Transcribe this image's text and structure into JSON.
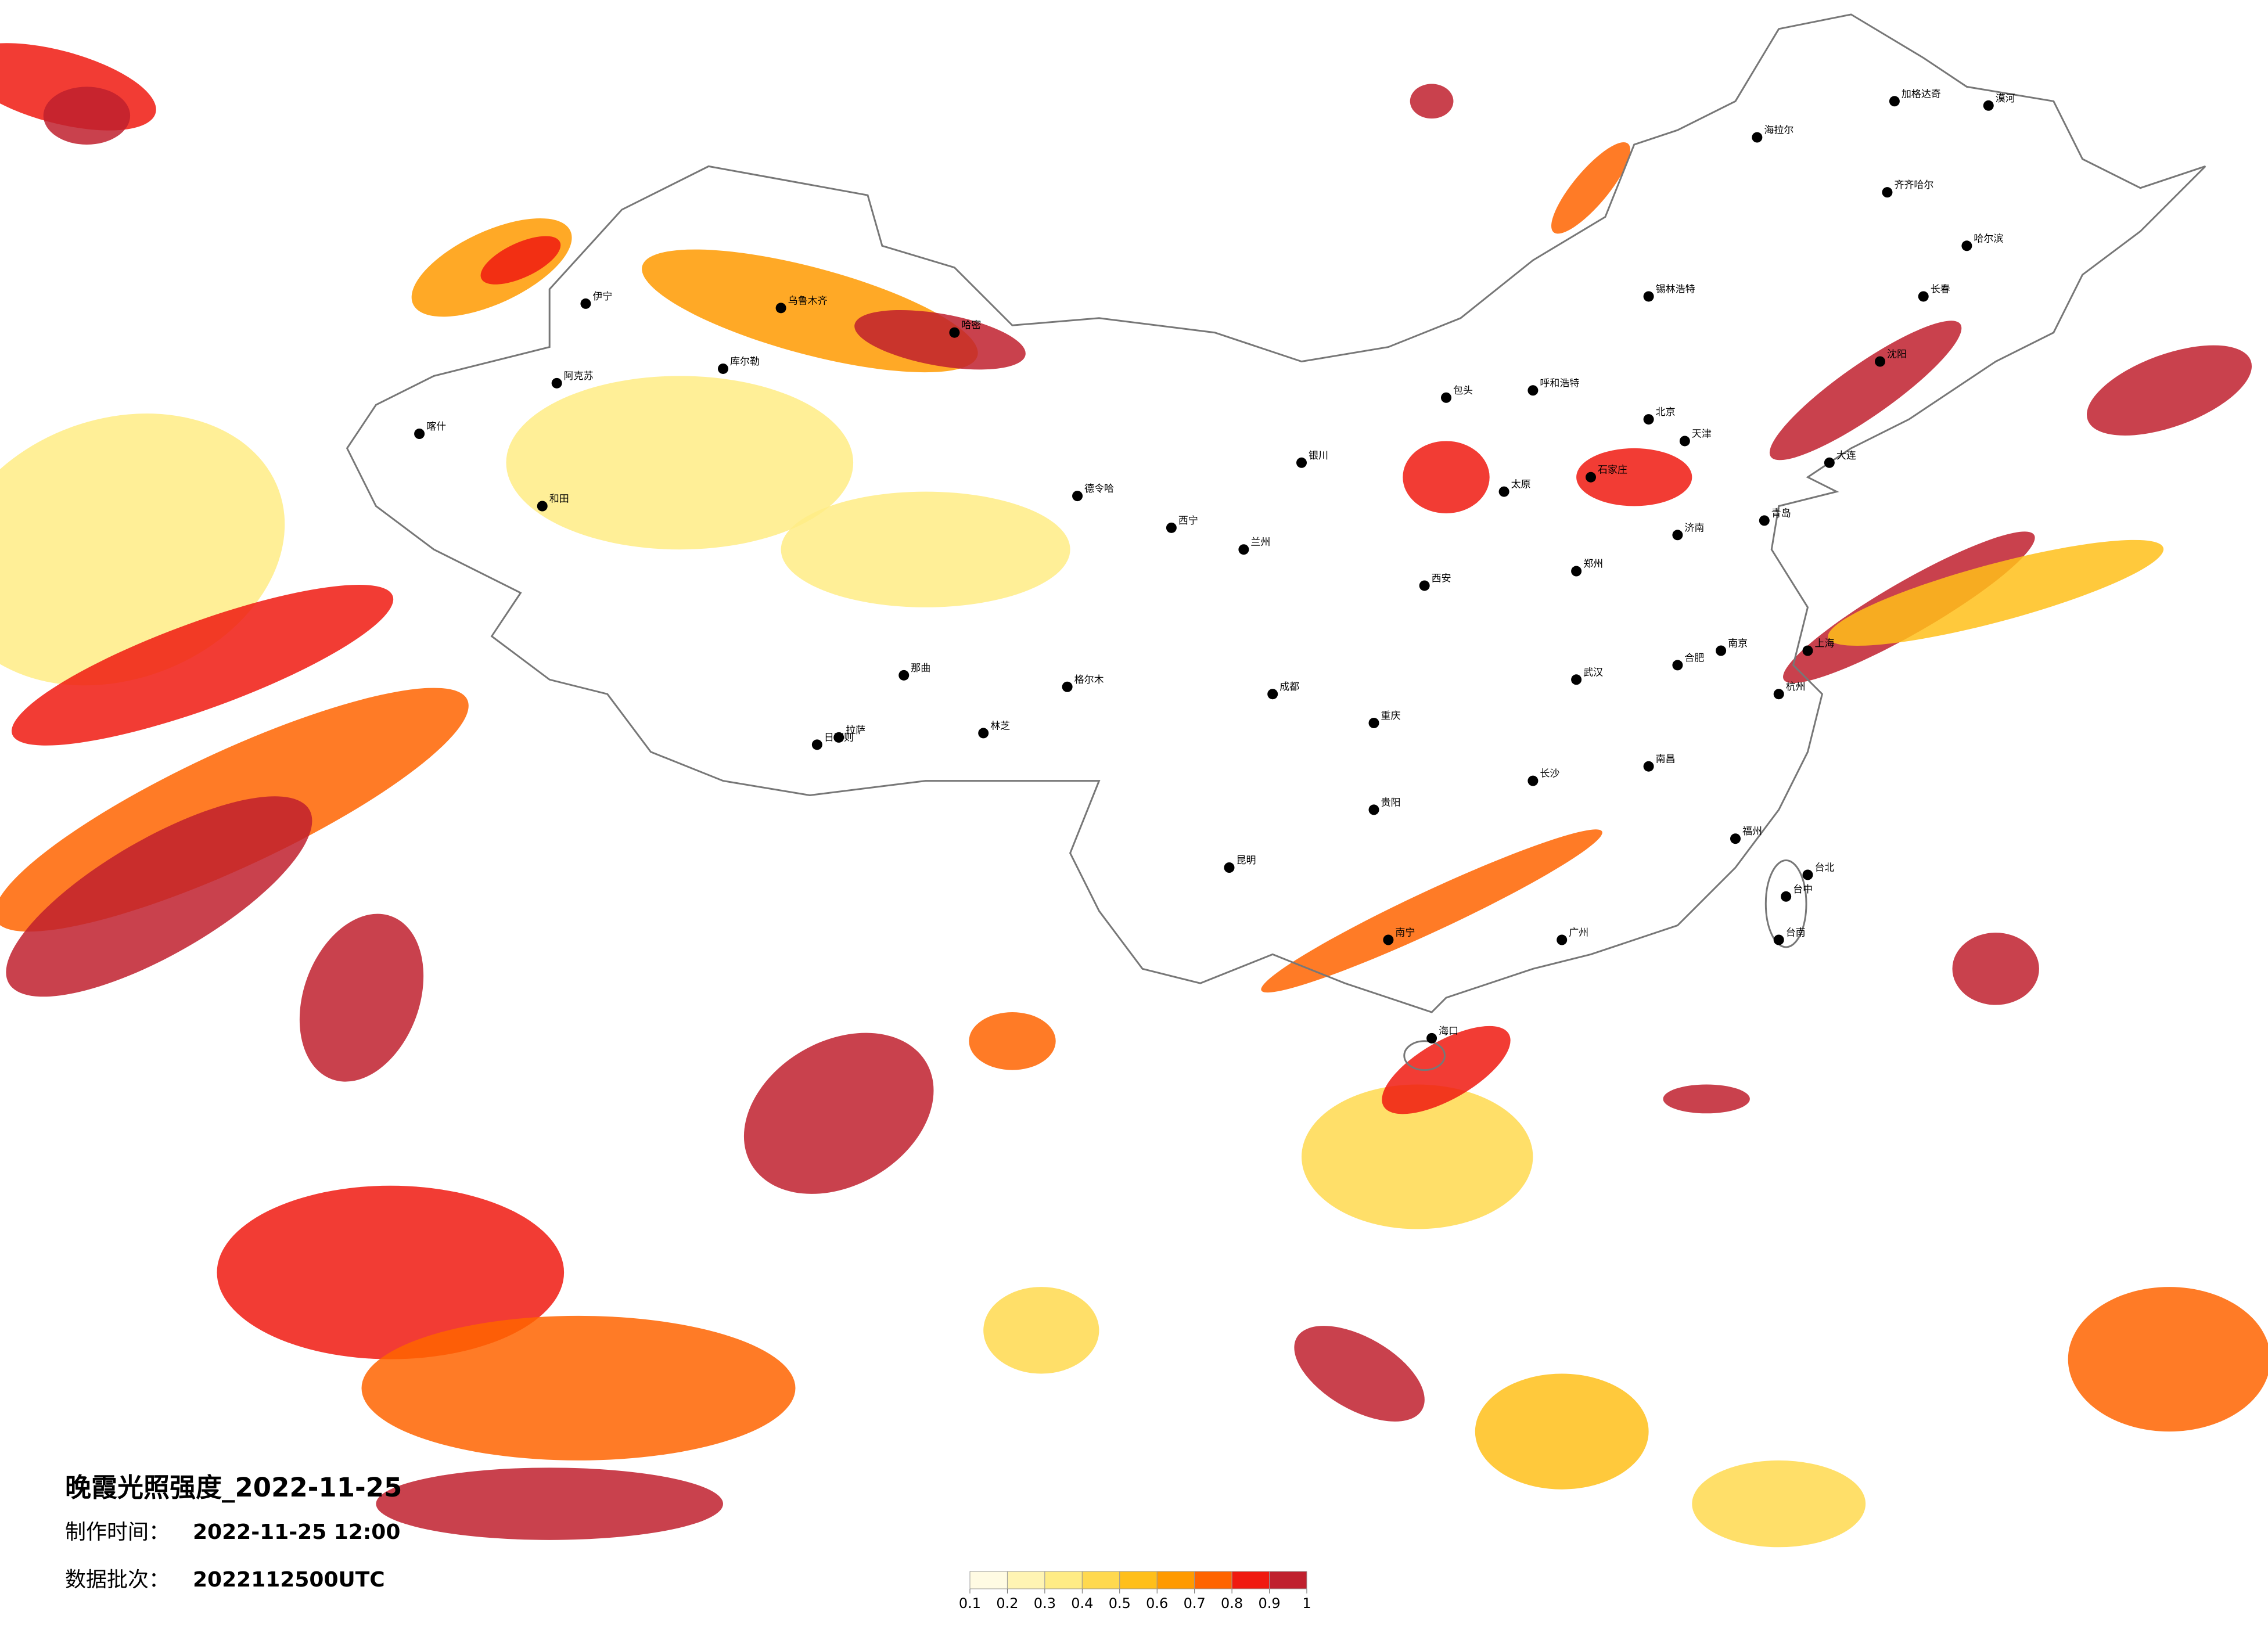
{
  "title": "晚霞光照强度_2022-11-25",
  "meta": [
    {
      "label": "制作时间：",
      "value": "2022-11-25 12:00"
    },
    {
      "label": "数据批次：",
      "value": "2022112500UTC"
    }
  ],
  "legend": {
    "ticks": [
      0.1,
      0.2,
      0.3,
      0.4,
      0.5,
      0.6,
      0.7,
      0.8,
      0.9,
      1
    ],
    "colors": [
      "#fffbe3",
      "#fff4b3",
      "#ffec85",
      "#ffd94f",
      "#ffbf1a",
      "#ff9a00",
      "#ff6400",
      "#f01a10",
      "#c0202e"
    ]
  },
  "cities": [
    "漠河",
    "加格达奇",
    "齐齐哈尔",
    "哈尔滨",
    "长春",
    "沈阳",
    "大连",
    "北京",
    "天津",
    "石家庄",
    "太原",
    "呼和浩特",
    "包头",
    "锡林浩特",
    "海拉尔",
    "郑州",
    "西安",
    "兰州",
    "西宁",
    "银川",
    "成都",
    "重庆",
    "贵阳",
    "昆明",
    "南宁",
    "广州",
    "海口",
    "长沙",
    "武汉",
    "南昌",
    "福州",
    "杭州",
    "上海",
    "南京",
    "合肥",
    "济南",
    "青岛",
    "拉萨",
    "日喀则",
    "格尔木",
    "德令哈",
    "那曲",
    "林芝",
    "乌鲁木齐",
    "喀什",
    "和田",
    "阿克苏",
    "伊宁",
    "库尔勒",
    "哈密",
    "台北",
    "台中",
    "台南"
  ]
}
